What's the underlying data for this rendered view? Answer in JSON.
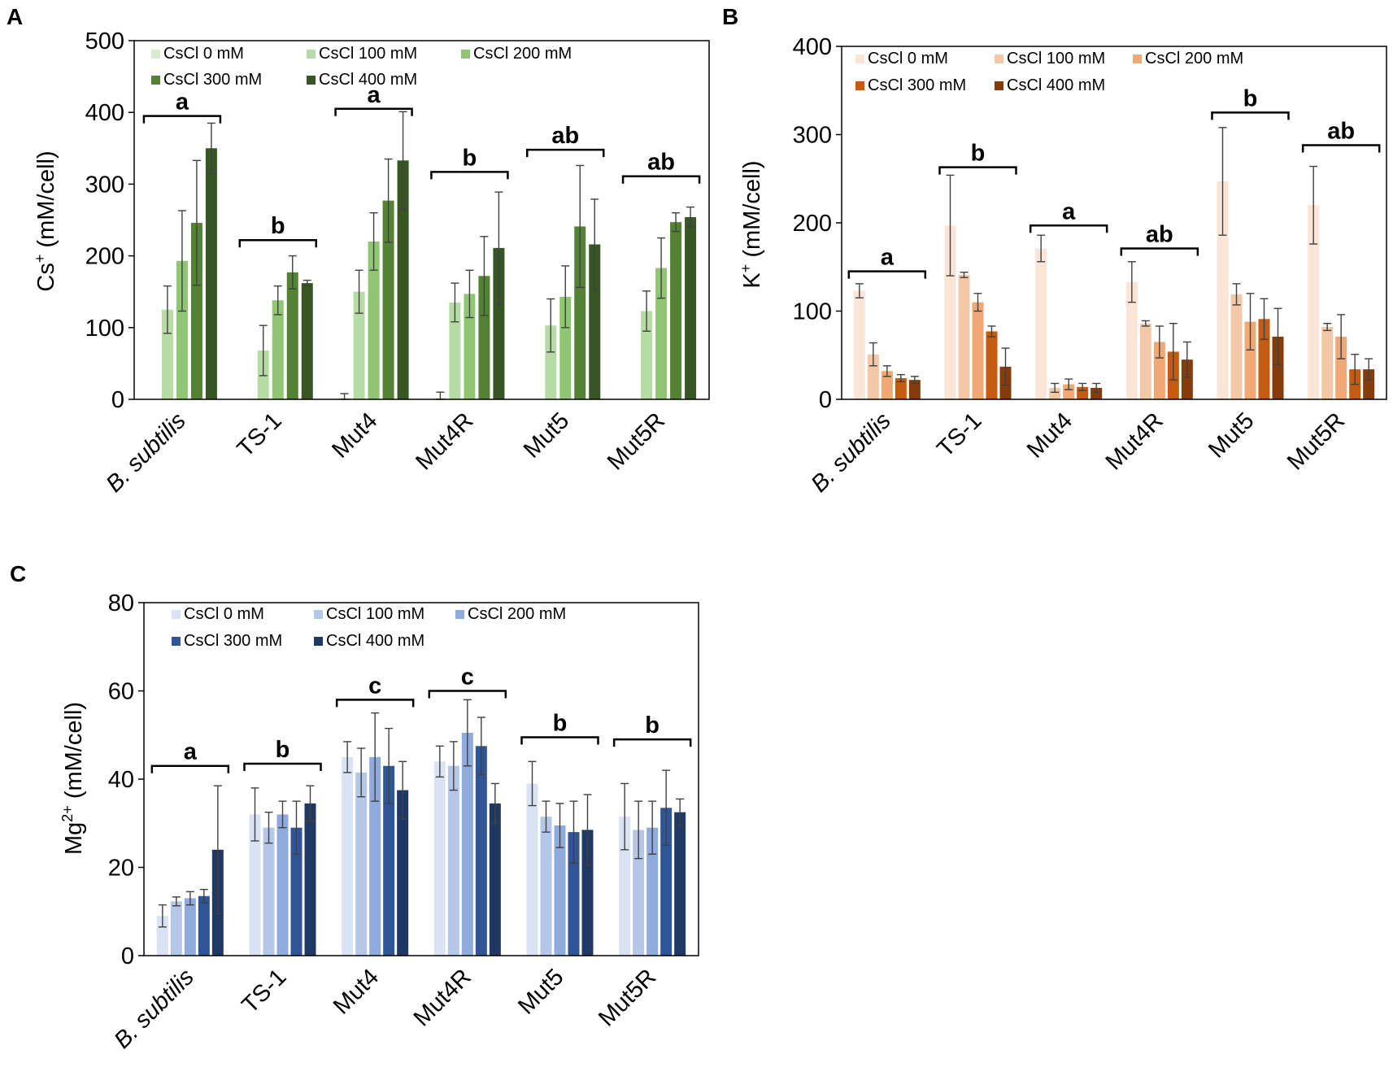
{
  "chart_data": [
    {
      "panel": "A",
      "type": "bar",
      "ylabel": "Cs+ (mM/cell)",
      "ylabel_main": "Cs",
      "ylabel_sup": "+",
      "ylabel_unit": " (mM/cell)",
      "ylim": [
        0,
        500
      ],
      "yticks": [
        0,
        100,
        200,
        300,
        400,
        500
      ],
      "categories": [
        "B. subtilis",
        "TS-1",
        "Mut4",
        "Mut4R",
        "Mut5",
        "Mut5R"
      ],
      "colors": [
        "#d9ecd0",
        "#b7dba4",
        "#8fc573",
        "#548235",
        "#375623"
      ],
      "series": [
        {
          "name": "CsCl 0 mM",
          "values": [
            0,
            0,
            2,
            2,
            0,
            0
          ],
          "errors": [
            0,
            0,
            6,
            8,
            0,
            0
          ]
        },
        {
          "name": "CsCl 100 mM",
          "values": [
            125,
            68,
            150,
            135,
            103,
            123
          ],
          "errors": [
            33,
            35,
            30,
            27,
            37,
            28
          ]
        },
        {
          "name": "CsCl 200 mM",
          "values": [
            193,
            138,
            220,
            147,
            143,
            183
          ],
          "errors": [
            70,
            20,
            40,
            33,
            43,
            42
          ]
        },
        {
          "name": "CsCl 300 mM",
          "values": [
            246,
            177,
            277,
            172,
            241,
            247
          ],
          "errors": [
            87,
            23,
            58,
            55,
            85,
            13
          ]
        },
        {
          "name": "CsCl 400 mM",
          "values": [
            350,
            162,
            333,
            211,
            216,
            254
          ],
          "errors": [
            35,
            4,
            68,
            78,
            63,
            14
          ]
        }
      ],
      "significance": [
        {
          "label": "a",
          "value": 395
        },
        {
          "label": "b",
          "value": 222
        },
        {
          "label": "a",
          "value": 405
        },
        {
          "label": "b",
          "value": 317
        },
        {
          "label": "ab",
          "value": 348
        },
        {
          "label": "ab",
          "value": 311
        }
      ]
    },
    {
      "panel": "B",
      "type": "bar",
      "ylabel": "K+ (mM/cell)",
      "ylabel_main": "K",
      "ylabel_sup": "+",
      "ylabel_unit": " (mM/cell)",
      "ylim": [
        0,
        400
      ],
      "yticks": [
        0,
        100,
        200,
        300,
        400
      ],
      "categories": [
        "B. subtilis",
        "TS-1",
        "Mut4",
        "Mut4R",
        "Mut5",
        "Mut5R"
      ],
      "colors": [
        "#fbe5d6",
        "#f4c7a6",
        "#f0a875",
        "#c55a11",
        "#843c0c"
      ],
      "series": [
        {
          "name": "CsCl 0 mM",
          "values": [
            123,
            197,
            171,
            133,
            247,
            220
          ],
          "errors": [
            8,
            57,
            15,
            23,
            61,
            44
          ]
        },
        {
          "name": "CsCl 100 mM",
          "values": [
            51,
            141,
            13,
            86,
            119,
            82
          ],
          "errors": [
            13,
            3,
            5,
            3,
            12,
            4
          ]
        },
        {
          "name": "CsCl 200 mM",
          "values": [
            32,
            110,
            17,
            65,
            88,
            71
          ],
          "errors": [
            6,
            10,
            6,
            18,
            32,
            25
          ]
        },
        {
          "name": "CsCl 300 mM",
          "values": [
            24,
            77,
            14,
            54,
            91,
            34
          ],
          "errors": [
            4,
            6,
            4,
            32,
            23,
            17
          ]
        },
        {
          "name": "CsCl 400 mM",
          "values": [
            22,
            37,
            13,
            45,
            71,
            34
          ],
          "errors": [
            4,
            21,
            5,
            20,
            32,
            12
          ]
        }
      ],
      "significance": [
        {
          "label": "a",
          "value": 145
        },
        {
          "label": "b",
          "value": 263
        },
        {
          "label": "a",
          "value": 197
        },
        {
          "label": "ab",
          "value": 171
        },
        {
          "label": "b",
          "value": 325
        },
        {
          "label": "ab",
          "value": 288
        }
      ]
    },
    {
      "panel": "C",
      "type": "bar",
      "ylabel": "Mg2+ (mM/cell)",
      "ylabel_main": "Mg",
      "ylabel_sup": "2+",
      "ylabel_unit": " (mM/cell)",
      "ylim": [
        0,
        80
      ],
      "yticks": [
        0,
        20,
        40,
        60,
        80
      ],
      "categories": [
        "B. subtilis",
        "TS-1",
        "Mut4",
        "Mut4R",
        "Mut5",
        "Mut5R"
      ],
      "colors": [
        "#dae3f3",
        "#b4c7e7",
        "#8faadc",
        "#2f5597",
        "#203864"
      ],
      "series": [
        {
          "name": "CsCl 0 mM",
          "values": [
            9,
            32,
            45,
            44,
            39,
            31.5
          ],
          "errors": [
            2.5,
            6,
            3.5,
            3.5,
            5,
            7.5
          ]
        },
        {
          "name": "CsCl 100 mM",
          "values": [
            12.3,
            29,
            41.5,
            43,
            31.5,
            28.5
          ],
          "errors": [
            1,
            3.5,
            5.5,
            5.5,
            3.5,
            6.5
          ]
        },
        {
          "name": "CsCl 200 mM",
          "values": [
            13,
            32,
            45,
            50.5,
            29.5,
            29
          ],
          "errors": [
            1.5,
            3,
            10,
            7.5,
            5,
            6
          ]
        },
        {
          "name": "CsCl 300 mM",
          "values": [
            13.5,
            29,
            43,
            47.5,
            28,
            33.5
          ],
          "errors": [
            1.5,
            6,
            8.5,
            6.5,
            7,
            8.5
          ]
        },
        {
          "name": "CsCl 400 mM",
          "values": [
            24,
            34.5,
            37.5,
            34.5,
            28.5,
            32.5
          ],
          "errors": [
            14.5,
            4,
            6.5,
            4.5,
            8,
            3
          ]
        }
      ],
      "significance": [
        {
          "label": "a",
          "value": 43
        },
        {
          "label": "b",
          "value": 43.5
        },
        {
          "label": "c",
          "value": 58
        },
        {
          "label": "c",
          "value": 60
        },
        {
          "label": "b",
          "value": 49.5
        },
        {
          "label": "b",
          "value": 49
        }
      ]
    }
  ]
}
